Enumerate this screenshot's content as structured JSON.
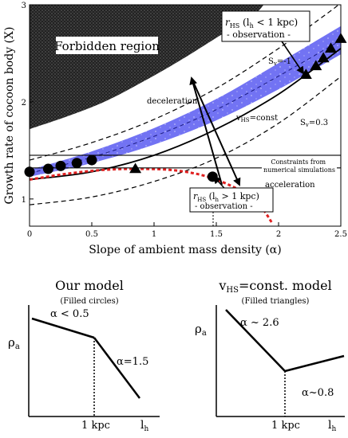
{
  "chart_data": [
    {
      "type": "line",
      "xlabel": "Slope of ambient mass density (α)",
      "ylabel": "Growth rate of cocoon body (X)",
      "xlim": [
        0,
        2.5
      ],
      "ylim": [
        0.72,
        3.0
      ],
      "x_ticks": [
        "0",
        "0.5",
        "1",
        "1.5",
        "2",
        "2.5"
      ],
      "y_ticks": [
        "1",
        "2",
        "3"
      ],
      "grid": false,
      "forbidden_region_label": "Forbidden region",
      "band_label": "Constraints from numerical simulations",
      "band_range": [
        1.32,
        1.45
      ],
      "curves": {
        "forbidden_boundary": [
          [
            0,
            1.72
          ],
          [
            0.3,
            1.85
          ],
          [
            0.6,
            2.0
          ],
          [
            0.9,
            2.2
          ],
          [
            1.2,
            2.42
          ],
          [
            1.5,
            2.66
          ],
          [
            1.8,
            2.9
          ],
          [
            1.88,
            3.0
          ]
        ],
        "sv_minus_1": [
          [
            0,
            1.4
          ],
          [
            0.5,
            1.58
          ],
          [
            1.0,
            1.82
          ],
          [
            1.5,
            2.14
          ],
          [
            2.0,
            2.55
          ],
          [
            2.4,
            2.92
          ],
          [
            2.48,
            3.0
          ]
        ],
        "vhs_const": [
          [
            0,
            1.2
          ],
          [
            0.5,
            1.28
          ],
          [
            1.0,
            1.45
          ],
          [
            1.5,
            1.72
          ],
          [
            2.0,
            2.08
          ],
          [
            2.5,
            2.55
          ]
        ],
        "sv_0_3": [
          [
            0,
            0.94
          ],
          [
            0.5,
            1.02
          ],
          [
            1.0,
            1.18
          ],
          [
            1.5,
            1.42
          ],
          [
            2.0,
            1.78
          ],
          [
            2.5,
            2.26
          ]
        ],
        "blue_band_upper": [
          [
            0,
            1.3
          ],
          [
            0.5,
            1.49
          ],
          [
            1.0,
            1.73
          ],
          [
            1.5,
            2.03
          ],
          [
            2.0,
            2.4
          ],
          [
            2.5,
            2.78
          ]
        ],
        "blue_band_lower": [
          [
            0,
            1.23
          ],
          [
            0.5,
            1.37
          ],
          [
            1.0,
            1.56
          ],
          [
            1.5,
            1.81
          ],
          [
            2.0,
            2.13
          ],
          [
            2.5,
            2.49
          ]
        ],
        "red_dotted": [
          [
            0,
            1.2
          ],
          [
            0.3,
            1.26
          ],
          [
            0.6,
            1.3
          ],
          [
            0.9,
            1.31
          ],
          [
            1.2,
            1.29
          ],
          [
            1.5,
            1.2
          ],
          [
            1.8,
            1.0
          ],
          [
            1.95,
            0.75
          ]
        ]
      },
      "filled_circles": {
        "x": [
          0,
          0.15,
          0.25,
          0.38,
          0.5,
          1.47
        ],
        "y": [
          1.28,
          1.31,
          1.34,
          1.37,
          1.4,
          1.23
        ]
      },
      "filled_triangles": {
        "x": [
          0.85,
          2.22,
          2.3,
          2.36,
          2.42,
          2.5
        ],
        "y": [
          1.31,
          2.28,
          2.37,
          2.45,
          2.55,
          2.65
        ]
      },
      "labels": {
        "rhs_small": "r",
        "rhs_small_sub": "HS",
        "rhs_small_paren": " (l",
        "rhs_small_sub2": "h",
        "rhs_small_cond": " < 1 kpc)",
        "rhs_small_obs": "- observation -",
        "rhs_large": "r",
        "rhs_large_sub": "HS",
        "rhs_large_paren": " (l",
        "rhs_large_sub2": "h",
        "rhs_large_cond": " > 1 kpc)",
        "rhs_large_obs": "- observation -",
        "sv_minus_1": "S",
        "sv_minus_1_sub": "v",
        "sv_minus_1_val": "=-1",
        "sv_0_3": "S",
        "sv_0_3_sub": "v",
        "sv_0_3_val": "=0.3",
        "vhs": "v",
        "vhs_sub": "HS",
        "vhs_val": "=const",
        "deceleration": "deceleration",
        "acceleration": "acceleration"
      }
    },
    {
      "type": "line",
      "title": "Our model",
      "subtitle": "(Filled circles)",
      "ylabel": "ρ",
      "ylabel_sub": "a",
      "xlabel": "l",
      "xlabel_sub": "h",
      "x_tick": "1 kpc",
      "segment_labels": [
        "α < 0.5",
        "α=1.5"
      ]
    },
    {
      "type": "line",
      "title_main": "v",
      "title_sub": "HS",
      "title_rest": "=const. model",
      "subtitle": "(Filled triangles)",
      "ylabel": "ρ",
      "ylabel_sub": "a",
      "xlabel": "l",
      "xlabel_sub": "h",
      "x_tick": "1 kpc",
      "segment_labels": [
        "α ~ 2.6",
        "α~0.8"
      ]
    }
  ]
}
